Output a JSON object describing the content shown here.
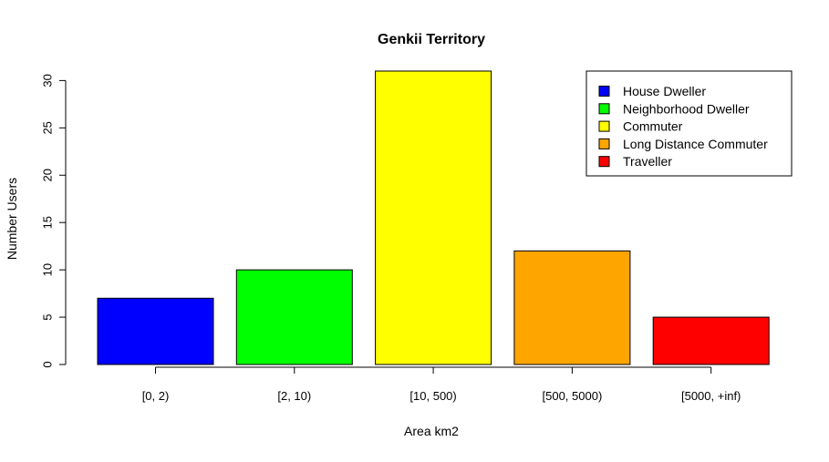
{
  "chart_data": {
    "type": "bar",
    "title": "Genkii Territory",
    "xlabel": "Area km2",
    "ylabel": "Number Users",
    "categories": [
      "[0, 2)",
      "[2, 10)",
      "[10, 500)",
      "[500, 5000)",
      "[5000, +inf)"
    ],
    "values": [
      7,
      10,
      31,
      12,
      5
    ],
    "colors": [
      "#0000ff",
      "#00ff00",
      "#ffff00",
      "#ffa500",
      "#ff0000"
    ],
    "ylim": [
      0,
      31
    ],
    "yticks": [
      "0",
      "5",
      "10",
      "15",
      "20",
      "25",
      "30"
    ],
    "legend": {
      "position": "top-right",
      "entries": [
        "House Dweller",
        "Neighborhood Dweller",
        "Commuter",
        "Long Distance Commuter",
        "Traveller"
      ]
    },
    "grid": false
  }
}
